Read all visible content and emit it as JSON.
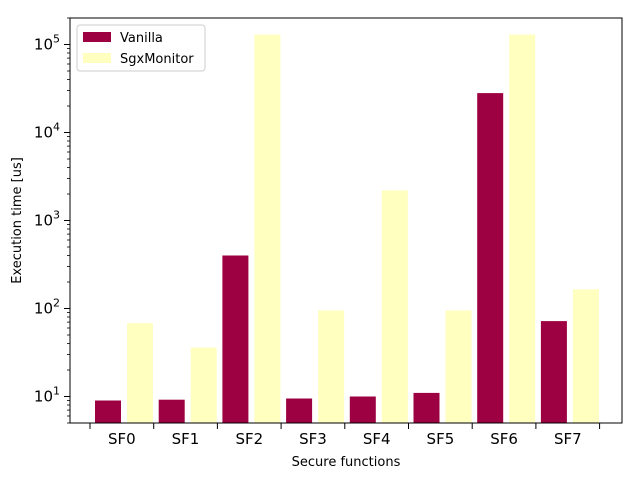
{
  "chart_data": {
    "type": "bar",
    "scale": "log",
    "categories": [
      "SF0",
      "SF1",
      "SF2",
      "SF3",
      "SF4",
      "SF5",
      "SF6",
      "SF7"
    ],
    "series": [
      {
        "name": "Vanilla",
        "color": "#9e0142",
        "values": [
          9,
          9.2,
          400,
          9.5,
          10,
          11,
          28000,
          72
        ]
      },
      {
        "name": "SgxMonitor",
        "color": "#ffffbf",
        "values": [
          68,
          36,
          130000,
          95,
          2200,
          95,
          130000,
          165
        ]
      }
    ],
    "xlabel": "Secure functions",
    "ylabel": "Execution time [us]",
    "ylim": [
      5,
      200000
    ],
    "y_ticks": [
      {
        "value": 10,
        "base": "10",
        "exp": "1"
      },
      {
        "value": 100,
        "base": "10",
        "exp": "2"
      },
      {
        "value": 1000,
        "base": "10",
        "exp": "3"
      },
      {
        "value": 10000,
        "base": "10",
        "exp": "4"
      },
      {
        "value": 100000,
        "base": "10",
        "exp": "5"
      }
    ],
    "legend_position": "top-left",
    "grid": false
  }
}
